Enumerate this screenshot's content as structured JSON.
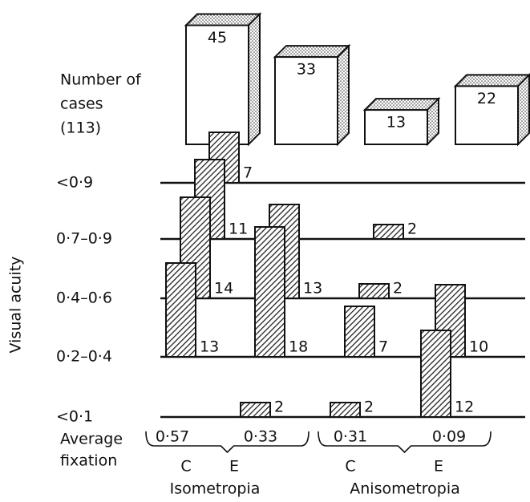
{
  "chart_data": {
    "type": "bar3d",
    "y_label": "Visual acuity",
    "categories": [
      "C",
      "E",
      "C",
      "E"
    ],
    "groups": [
      "Isometropia",
      "Anisometropia"
    ],
    "series": [
      {
        "name": "<0·9",
        "values": [
          7,
          null,
          null,
          null
        ]
      },
      {
        "name": "0·7–0·9",
        "values": [
          11,
          null,
          2,
          null
        ]
      },
      {
        "name": "0·4–0·6",
        "values": [
          14,
          13,
          2,
          null
        ]
      },
      {
        "name": "0·2–0·4",
        "values": [
          13,
          18,
          7,
          10
        ]
      },
      {
        "name": "<0·1",
        "values": [
          null,
          2,
          2,
          12
        ]
      }
    ],
    "cases_label": [
      "Number of",
      "cases",
      "(113)"
    ],
    "cases": [
      45,
      33,
      13,
      22
    ],
    "fixation_label": [
      "Average",
      "fixation"
    ],
    "average_fixation": [
      "0·57",
      "0·33",
      "0·31",
      "0·09"
    ]
  }
}
